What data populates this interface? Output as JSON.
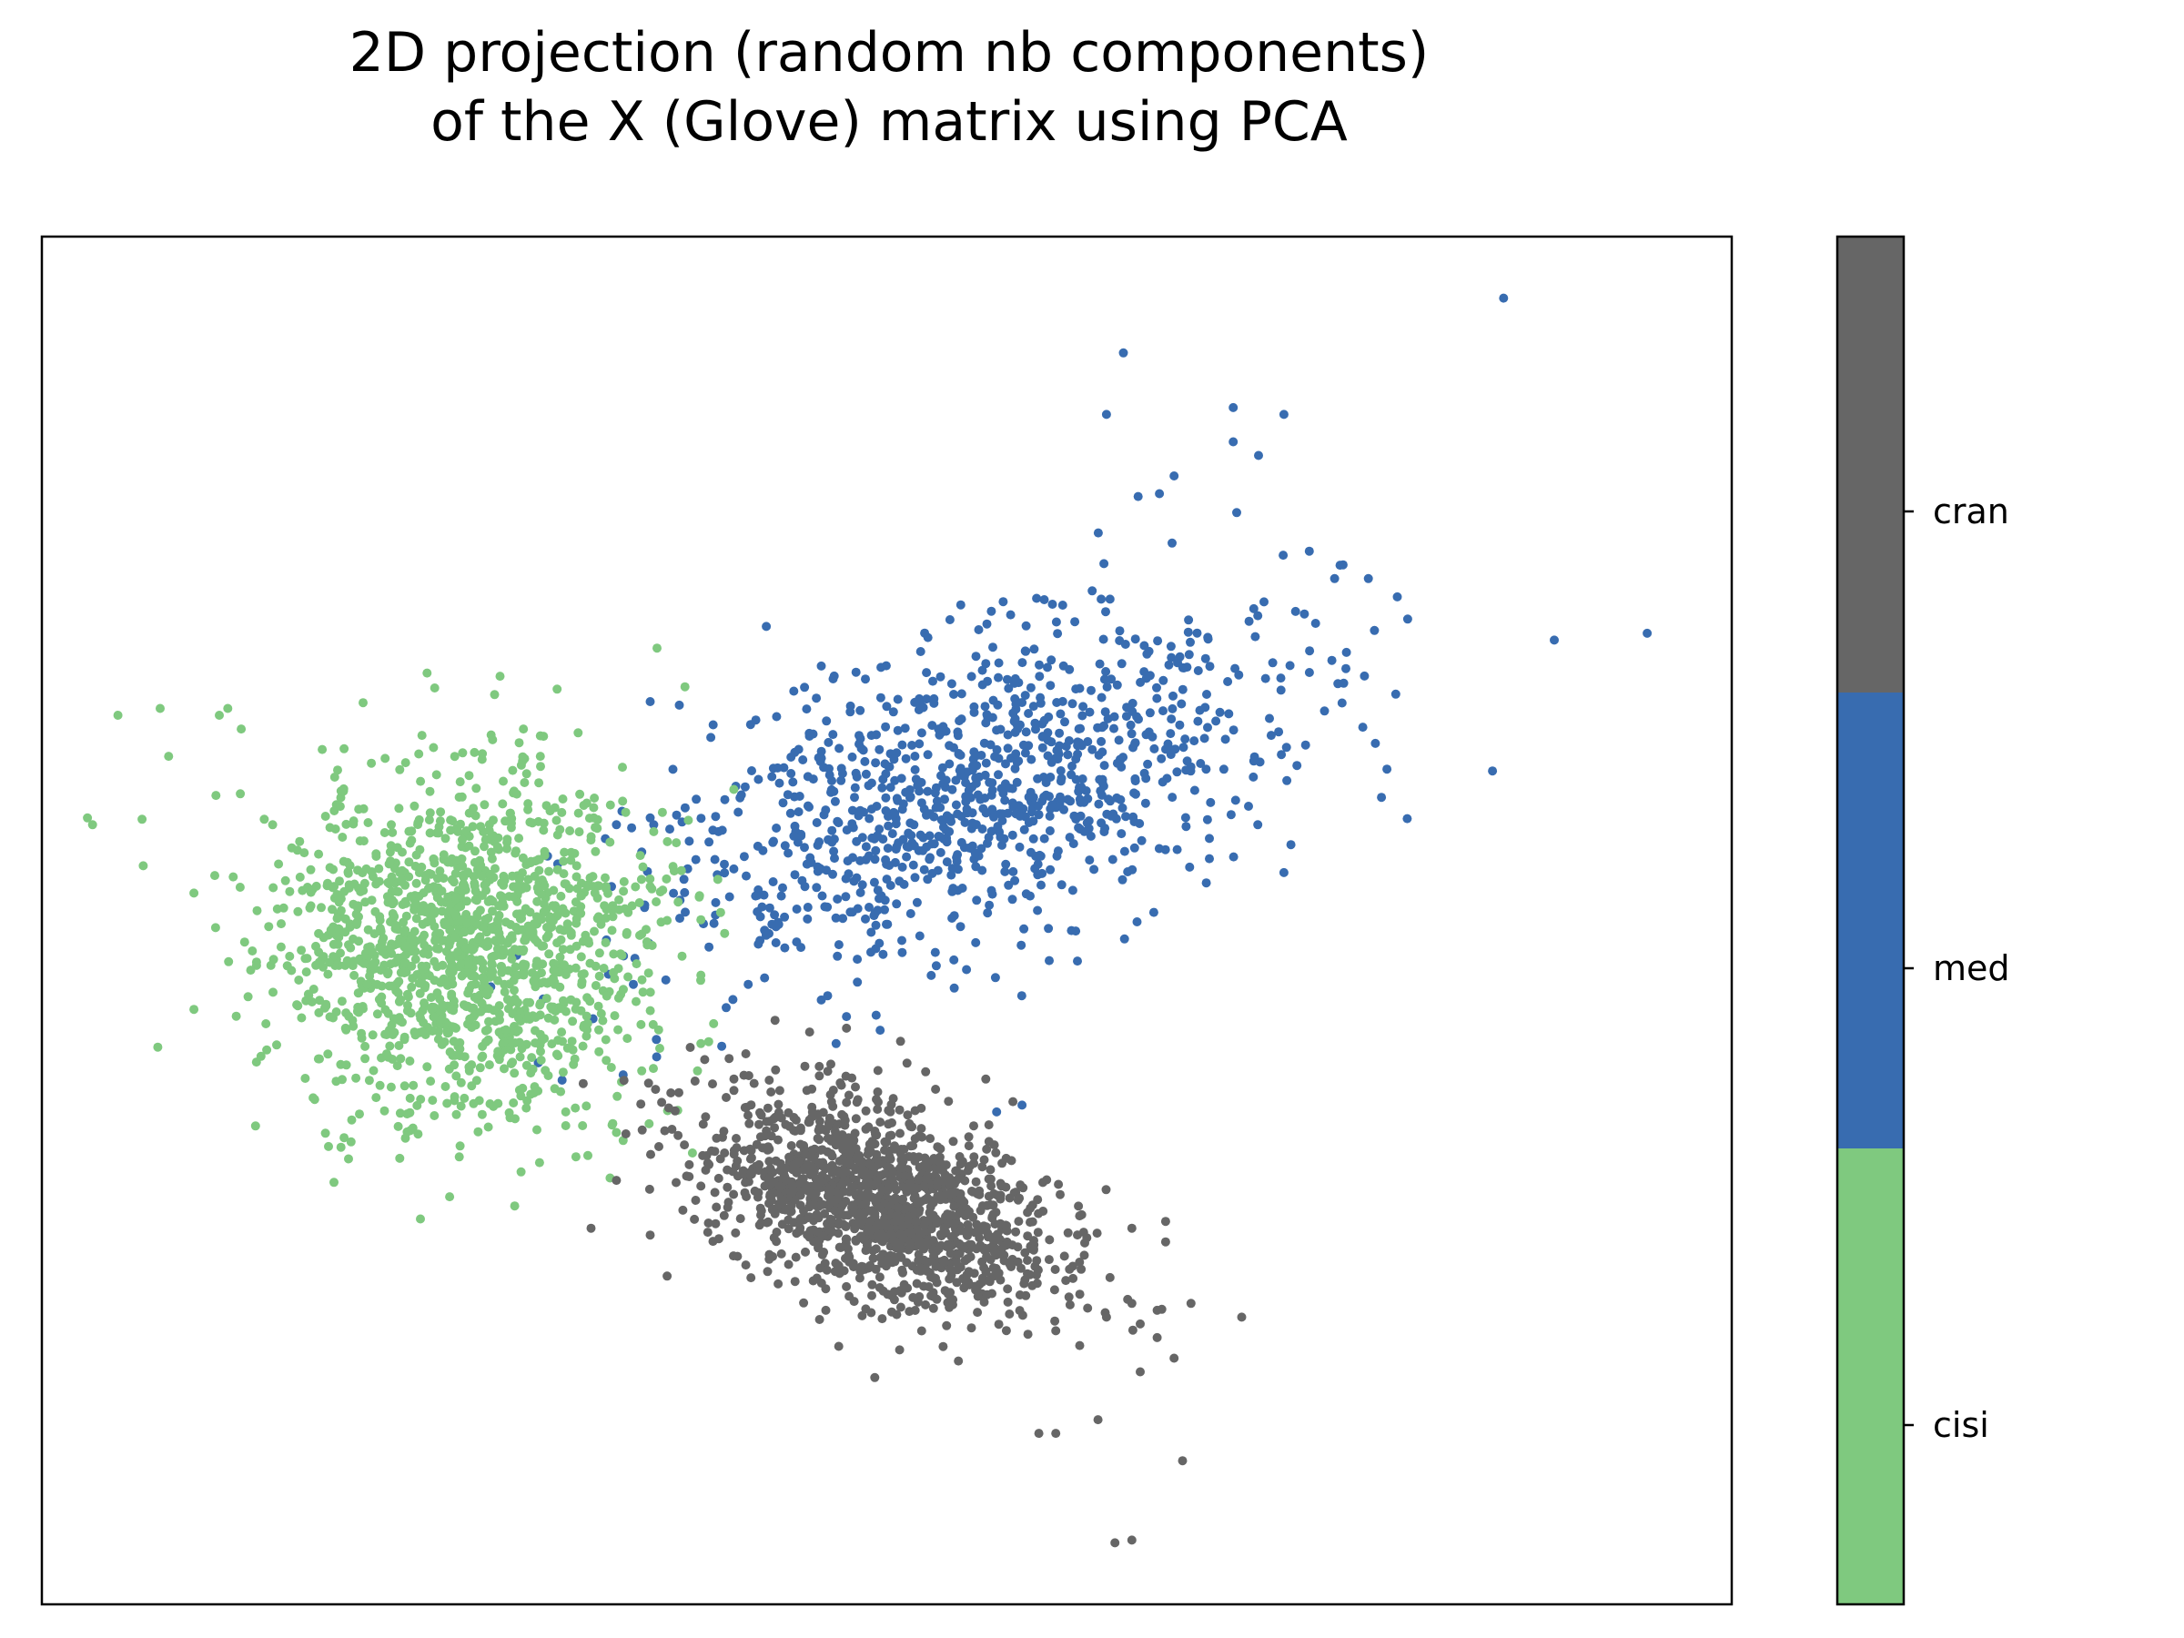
{
  "chart_data": {
    "type": "scatter",
    "title_lines": [
      "2D projection (random nb components)",
      "of the X (Glove) matrix using PCA"
    ],
    "xlabel": "",
    "ylabel": "",
    "xlim": [
      0,
      100
    ],
    "ylim": [
      0,
      100
    ],
    "axis_ticks": false,
    "grid": false,
    "legend": "colorbar-right",
    "colorbar_labels": [
      "cisi",
      "med",
      "cran"
    ],
    "colors": {
      "cisi": "#7fc97f",
      "med": "#386cb0",
      "cran": "#666666"
    },
    "point_radius": 5,
    "series": [
      {
        "name": "cisi",
        "color": "#7fc97f",
        "cluster": {
          "count": 1460,
          "center": [
            25,
            48.5
          ],
          "sd": [
            5.5,
            6.2
          ],
          "corr": 0.0,
          "seed": 11
        },
        "outliers": [
          [
            4.5,
            65
          ],
          [
            7,
            65.5
          ],
          [
            7.5,
            62
          ],
          [
            10.5,
            65
          ],
          [
            11,
            65.5
          ],
          [
            11.8,
            64
          ],
          [
            2.7,
            57.5
          ],
          [
            3,
            57
          ],
          [
            6,
            54
          ],
          [
            9,
            52
          ],
          [
            9,
            43.5
          ],
          [
            11.5,
            43
          ],
          [
            18,
            42
          ],
          [
            20.5,
            40
          ],
          [
            25,
            37
          ],
          [
            28,
            35.5
          ],
          [
            31,
            36
          ],
          [
            32,
            35
          ],
          [
            34,
            34.5
          ],
          [
            31,
            35
          ],
          [
            38.5,
            33
          ],
          [
            35.5,
            39
          ],
          [
            38.8,
            39
          ],
          [
            39,
            46
          ],
          [
            35.5,
            49
          ],
          [
            37,
            50
          ],
          [
            40,
            53
          ],
          [
            39,
            41
          ],
          [
            36.5,
            42
          ],
          [
            28.5,
            64
          ],
          [
            29.5,
            62
          ],
          [
            29.5,
            63.5
          ],
          [
            19.5,
            61.5
          ],
          [
            17.5,
            61
          ]
        ]
      },
      {
        "name": "med",
        "color": "#386cb0",
        "cluster": {
          "count": 1030,
          "center": [
            54.5,
            59
          ],
          "sd": [
            9.2,
            6.4
          ],
          "corr": 0.5,
          "seed": 23
        },
        "outliers": [
          [
            86.5,
            95.5
          ],
          [
            64,
            91.5
          ],
          [
            63,
            87
          ],
          [
            70.5,
            87.5
          ],
          [
            73.5,
            87
          ],
          [
            70.5,
            85
          ],
          [
            72,
            84
          ],
          [
            67,
            82.5
          ],
          [
            89.5,
            70.5
          ],
          [
            95,
            71
          ],
          [
            75,
            77
          ],
          [
            76.5,
            75
          ],
          [
            77,
            76
          ],
          [
            78.5,
            75
          ],
          [
            36,
            66
          ],
          [
            34,
            57
          ],
          [
            35.5,
            55
          ],
          [
            36,
            57.5
          ],
          [
            46.5,
            44.5
          ],
          [
            47,
            41
          ],
          [
            56.5,
            36
          ],
          [
            58,
            36.5
          ],
          [
            73.5,
            53.5
          ]
        ]
      },
      {
        "name": "cran",
        "color": "#666666",
        "cluster": {
          "count": 1400,
          "center": [
            49.5,
            29.5
          ],
          "sd": [
            5.2,
            4.0
          ],
          "corr": -0.45,
          "seed": 37
        },
        "outliers": [
          [
            63.5,
            4.5
          ],
          [
            64.5,
            4.7
          ],
          [
            67.5,
            10.5
          ],
          [
            59,
            12.5
          ],
          [
            60,
            12.5
          ],
          [
            62.5,
            13.5
          ],
          [
            71,
            21
          ],
          [
            67,
            18
          ],
          [
            66,
            21.5
          ],
          [
            64.5,
            22
          ],
          [
            66,
            19.5
          ],
          [
            65,
            17
          ],
          [
            63,
            21
          ],
          [
            61.5,
            24.5
          ],
          [
            64.5,
            27.5
          ],
          [
            66.5,
            28
          ],
          [
            66.5,
            26.5
          ],
          [
            68,
            22
          ],
          [
            65,
            20.5
          ],
          [
            32.5,
            27.5
          ],
          [
            36,
            27
          ],
          [
            34,
            31
          ],
          [
            37,
            24
          ]
        ]
      }
    ]
  }
}
